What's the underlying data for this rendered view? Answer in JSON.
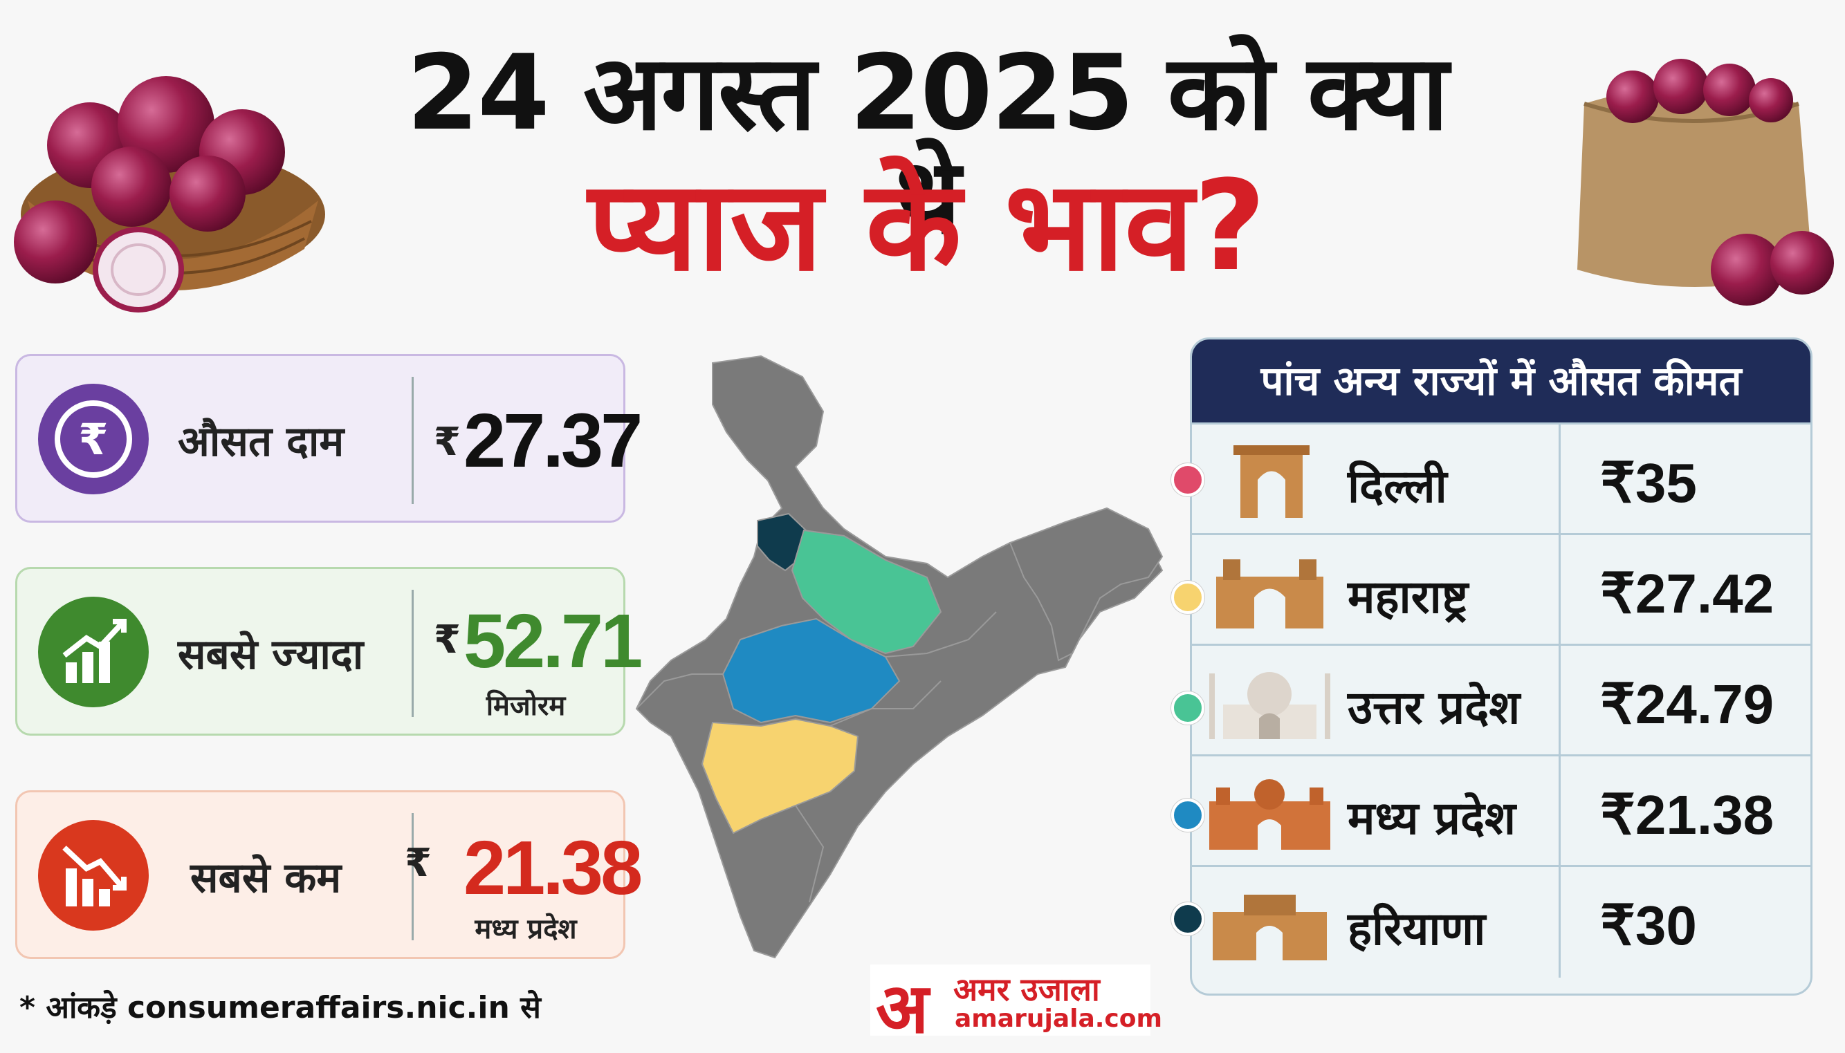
{
  "title": {
    "line1": "24 अगस्त 2025 को क्या थे",
    "line2": "प्याज के भाव?"
  },
  "stats": [
    {
      "label": "औसत दाम",
      "currency": "₹",
      "value": "27.37",
      "sub": "",
      "color": "#111111",
      "icon": "rupee-icon",
      "icon_bg": "#6a3fa0",
      "card_bg": "#f1ecf8",
      "card_border": "#c9b8e2"
    },
    {
      "label": "सबसे ज्यादा",
      "currency": "₹",
      "value": "52.71",
      "sub": "मिजोरम",
      "color": "#3f8a2e",
      "icon": "chart-up-icon",
      "icon_bg": "#3f8a2e",
      "card_bg": "#eef6ec",
      "card_border": "#b7d9ae"
    },
    {
      "label": "सबसे कम",
      "currency": "₹",
      "value": "21.38",
      "sub": "मध्य प्रदेश",
      "color": "#d42a1e",
      "icon": "chart-down-icon",
      "icon_bg": "#d9381e",
      "card_bg": "#fdeee7",
      "card_border": "#f2c6b2"
    }
  ],
  "footnote": "* आंकड़े consumeraffairs.nic.in से",
  "table": {
    "header": "पांच अन्य राज्यों में औसत कीमत",
    "rows": [
      {
        "state": "दिल्ली",
        "price": "₹35",
        "dot_color": "#e04a6a",
        "icon": "india-gate-icon"
      },
      {
        "state": "महाराष्ट्र",
        "price": "₹27.42",
        "dot_color": "#f7d36f",
        "icon": "gateway-of-india-icon"
      },
      {
        "state": "उत्तर प्रदेश",
        "price": "₹24.79",
        "dot_color": "#49c495",
        "icon": "taj-mahal-icon"
      },
      {
        "state": "मध्य प्रदेश",
        "price": "₹21.38",
        "dot_color": "#1f8ac2",
        "icon": "palace-icon"
      },
      {
        "state": "हरियाणा",
        "price": "₹30",
        "dot_color": "#0f3b4d",
        "icon": "monument-gate-icon"
      }
    ]
  },
  "map": {
    "base_color": "#7a7a7a",
    "highlights": [
      {
        "state": "हरियाणा",
        "color": "#0f3b4d"
      },
      {
        "state": "उत्तर प्रदेश",
        "color": "#49c495"
      },
      {
        "state": "मध्य प्रदेश",
        "color": "#1f8ac2"
      },
      {
        "state": "महाराष्ट्र",
        "color": "#f7d36f"
      }
    ]
  },
  "logo": {
    "mark": "अ",
    "name": "अमर उजाला",
    "site": "amarujala.com"
  }
}
